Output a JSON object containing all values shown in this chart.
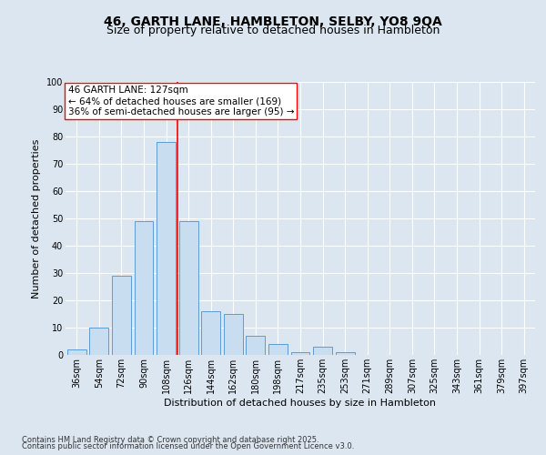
{
  "title1": "46, GARTH LANE, HAMBLETON, SELBY, YO8 9QA",
  "title2": "Size of property relative to detached houses in Hambleton",
  "xlabel": "Distribution of detached houses by size in Hambleton",
  "ylabel": "Number of detached properties",
  "categories": [
    "36sqm",
    "54sqm",
    "72sqm",
    "90sqm",
    "108sqm",
    "126sqm",
    "144sqm",
    "162sqm",
    "180sqm",
    "198sqm",
    "217sqm",
    "235sqm",
    "253sqm",
    "271sqm",
    "289sqm",
    "307sqm",
    "325sqm",
    "343sqm",
    "361sqm",
    "379sqm",
    "397sqm"
  ],
  "values": [
    2,
    10,
    29,
    49,
    78,
    49,
    16,
    15,
    7,
    4,
    1,
    3,
    1,
    0,
    0,
    0,
    0,
    0,
    0,
    0,
    0
  ],
  "bar_color": "#c8ddf0",
  "bar_edge_color": "#5b9bd5",
  "reference_line_label": "46 GARTH LANE: 127sqm",
  "annotation_line1": "← 64% of detached houses are smaller (169)",
  "annotation_line2": "36% of semi-detached houses are larger (95) →",
  "background_color": "#dce6f0",
  "plot_bg_color": "#dce6f0",
  "footer1": "Contains HM Land Registry data © Crown copyright and database right 2025.",
  "footer2": "Contains public sector information licensed under the Open Government Licence v3.0.",
  "ylim": [
    0,
    100
  ],
  "title_fontsize": 10,
  "subtitle_fontsize": 9,
  "axis_label_fontsize": 8,
  "tick_fontsize": 7,
  "annotation_fontsize": 7.5,
  "footer_fontsize": 6
}
